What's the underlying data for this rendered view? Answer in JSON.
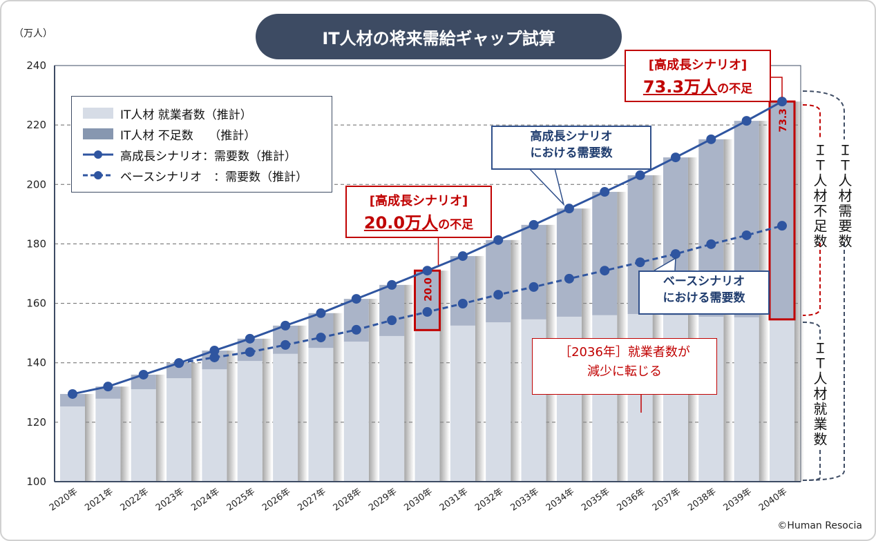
{
  "title": "IT人材の将来需給ギャップ試算",
  "unit_label": "（万人）",
  "copyright": "©Human Resocia",
  "colors": {
    "workers": "#d6dce6",
    "shortage": "#aab4c8",
    "line": "#2f55a0",
    "title_bg": "#3d4b63",
    "highlight": "#c00000"
  },
  "legend": {
    "workers": "IT人材 就業者数（推計）",
    "shortage": "IT人材 不足数　 （推計）",
    "high": "高成長シナリオ：需要数（推計）",
    "base": "ベースシナリオ　：需要数（推計）"
  },
  "callouts": {
    "c2040_title": "[高成長シナリオ]",
    "c2040_value": "73.3万人",
    "c2040_suffix": "の不足",
    "c2030_title": "[高成長シナリオ]",
    "c2030_value": "20.0万人",
    "c2030_suffix": "の不足",
    "high_line1": "高成長シナリオ",
    "high_line2": "における需要数",
    "base_line1": "ベースシナリオ",
    "base_line2": "における需要数",
    "y2036_line1": "［2036年］就業者数が",
    "y2036_line2": "減少に転じる",
    "bar_label_2030": "20.0",
    "bar_label_2040": "73.3"
  },
  "side_labels": {
    "shortage": "ＩＴ人材不足数",
    "demand": "ＩＴ人材需要数",
    "workers": "ＩＴ人材就業数"
  },
  "chart_data": {
    "type": "bar",
    "categories": [
      "2020年",
      "2021年",
      "2022年",
      "2023年",
      "2024年",
      "2025年",
      "2026年",
      "2027年",
      "2028年",
      "2029年",
      "2030年",
      "2031年",
      "2032年",
      "2033年",
      "2034年",
      "2035年",
      "2036年",
      "2037年",
      "2038年",
      "2039年",
      "2040年"
    ],
    "ylim": [
      100,
      240
    ],
    "yticks": [
      100,
      120,
      140,
      160,
      180,
      200,
      220,
      240
    ],
    "grid": true,
    "legend_position": "top-left",
    "series": [
      {
        "name": "IT人材 就業者数（推計）",
        "type": "bar",
        "values": [
          125.3,
          127.9,
          131.1,
          134.8,
          137.8,
          140.6,
          143.0,
          145.0,
          147.1,
          149.0,
          151.0,
          152.5,
          153.6,
          154.6,
          155.5,
          156.0,
          156.4,
          156.0,
          155.5,
          155.3,
          154.6
        ]
      },
      {
        "name": "高成長シナリオ：需要数（推計）",
        "type": "line",
        "values": [
          129.5,
          132.0,
          136.0,
          139.9,
          144.1,
          148.1,
          152.5,
          156.7,
          161.5,
          166.2,
          171.0,
          175.9,
          181.3,
          186.4,
          191.9,
          197.5,
          203.1,
          209.1,
          215.2,
          221.4,
          227.9
        ]
      },
      {
        "name": "ベースシナリオ　：需要数（推計）",
        "type": "line",
        "values": [
          null,
          null,
          null,
          139.9,
          141.8,
          143.6,
          146.0,
          148.5,
          151.1,
          154.3,
          157.1,
          159.9,
          162.9,
          165.5,
          168.3,
          171.0,
          173.8,
          176.6,
          179.9,
          182.9,
          186.1
        ]
      }
    ]
  }
}
